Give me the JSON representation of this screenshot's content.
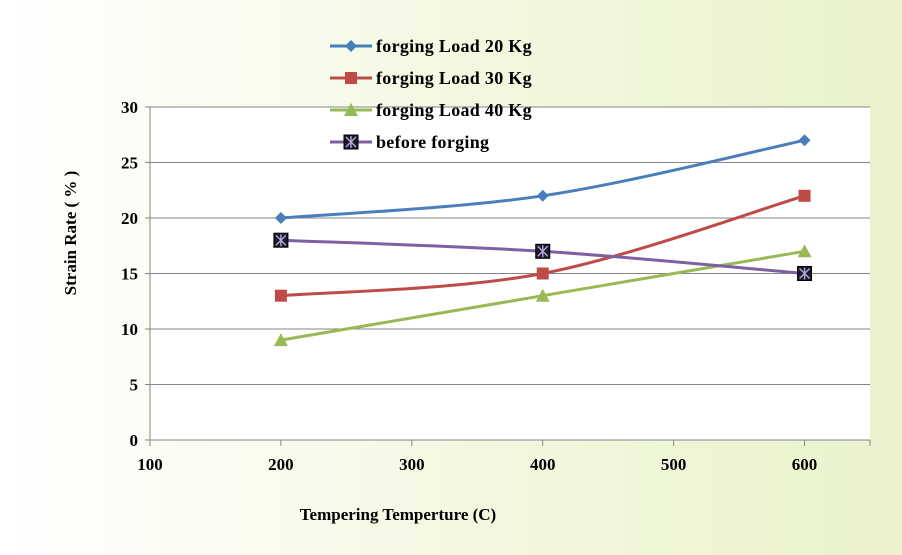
{
  "chart_data": {
    "type": "line",
    "title": "",
    "xlabel": "Tempering  Temperture  (C)",
    "ylabel": "Strain Rate ( % )",
    "xlim": [
      100,
      650
    ],
    "ylim": [
      0,
      30
    ],
    "xticks": [
      100,
      200,
      300,
      400,
      500,
      600
    ],
    "yticks": [
      0,
      5,
      10,
      15,
      20,
      25,
      30
    ],
    "grid": "horizontal",
    "legend_position": "top-center",
    "x": [
      200,
      400,
      600
    ],
    "series": [
      {
        "name": "forging Load 20 Kg",
        "values": [
          20,
          22,
          27
        ],
        "color": "#4a7ebb",
        "marker": "diamond"
      },
      {
        "name": "forging Load 30 Kg",
        "values": [
          13,
          15,
          22
        ],
        "color": "#be4b48",
        "marker": "square"
      },
      {
        "name": "forging Load 40 Kg",
        "values": [
          9,
          13,
          17
        ],
        "color": "#98b954",
        "marker": "triangle"
      },
      {
        "name": "before forging",
        "values": [
          18,
          17,
          15
        ],
        "color": "#7d60a0",
        "marker": "x-square"
      }
    ]
  }
}
